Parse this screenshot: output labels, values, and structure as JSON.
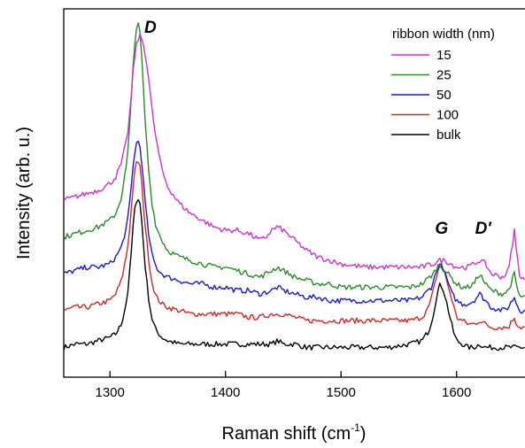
{
  "chart_data": {
    "type": "line",
    "xlabel": "Raman shift (cm",
    "xlabel_sup": "-1",
    "xlabel_tail": ")",
    "ylabel": "Intensity (arb. u.)",
    "xlim": [
      1260,
      1660
    ],
    "ylim": [
      0,
      1
    ],
    "y_ticks_shown": false,
    "x_ticks": [
      "1300",
      "1400",
      "1500",
      "1600"
    ],
    "legend_title": "ribbon width (nm)",
    "legend_position": "top-right",
    "annotations": [
      {
        "text": "D",
        "x": 1335,
        "y": 0.96
      },
      {
        "text": "G",
        "x": 1587,
        "y": 0.36
      },
      {
        "text": "D'",
        "x": 1623,
        "y": 0.36
      }
    ],
    "series": [
      {
        "name": "15",
        "color": "#cc33cc",
        "x": [
          1260,
          1270,
          1280,
          1290,
          1300,
          1305,
          1310,
          1315,
          1318,
          1320,
          1322,
          1324,
          1326,
          1328,
          1330,
          1333,
          1336,
          1340,
          1345,
          1350,
          1360,
          1370,
          1380,
          1390,
          1400,
          1410,
          1420,
          1430,
          1435,
          1440,
          1445,
          1450,
          1460,
          1470,
          1480,
          1490,
          1500,
          1520,
          1540,
          1560,
          1570,
          1580,
          1585,
          1590,
          1595,
          1600,
          1605,
          1610,
          1615,
          1620,
          1625,
          1630,
          1640,
          1645,
          1648,
          1650,
          1652,
          1655,
          1660
        ],
        "y": [
          0.46,
          0.47,
          0.48,
          0.49,
          0.51,
          0.53,
          0.57,
          0.65,
          0.75,
          0.84,
          0.91,
          0.94,
          0.95,
          0.94,
          0.91,
          0.84,
          0.74,
          0.64,
          0.55,
          0.5,
          0.45,
          0.42,
          0.4,
          0.38,
          0.37,
          0.37,
          0.36,
          0.34,
          0.35,
          0.37,
          0.38,
          0.37,
          0.34,
          0.31,
          0.29,
          0.28,
          0.27,
          0.26,
          0.26,
          0.26,
          0.26,
          0.27,
          0.28,
          0.28,
          0.27,
          0.26,
          0.26,
          0.26,
          0.27,
          0.28,
          0.27,
          0.24,
          0.23,
          0.25,
          0.32,
          0.37,
          0.3,
          0.23,
          0.22
        ]
      },
      {
        "name": "25",
        "color": "#2a8a2a",
        "x": [
          1260,
          1270,
          1280,
          1290,
          1300,
          1305,
          1310,
          1315,
          1318,
          1320,
          1322,
          1324,
          1326,
          1328,
          1330,
          1333,
          1336,
          1340,
          1345,
          1350,
          1360,
          1370,
          1380,
          1390,
          1400,
          1410,
          1420,
          1430,
          1440,
          1445,
          1450,
          1460,
          1470,
          1480,
          1490,
          1500,
          1520,
          1540,
          1560,
          1570,
          1580,
          1585,
          1590,
          1595,
          1600,
          1605,
          1610,
          1615,
          1620,
          1625,
          1630,
          1640,
          1645,
          1648,
          1650,
          1652,
          1655,
          1660
        ],
        "y": [
          0.35,
          0.36,
          0.37,
          0.38,
          0.4,
          0.42,
          0.47,
          0.58,
          0.73,
          0.86,
          0.96,
          0.99,
          0.96,
          0.86,
          0.72,
          0.57,
          0.46,
          0.38,
          0.34,
          0.31,
          0.29,
          0.28,
          0.27,
          0.26,
          0.26,
          0.25,
          0.24,
          0.23,
          0.25,
          0.26,
          0.25,
          0.23,
          0.22,
          0.21,
          0.21,
          0.2,
          0.2,
          0.2,
          0.2,
          0.21,
          0.24,
          0.27,
          0.25,
          0.23,
          0.21,
          0.2,
          0.2,
          0.21,
          0.24,
          0.21,
          0.19,
          0.18,
          0.19,
          0.22,
          0.24,
          0.2,
          0.17,
          0.17
        ]
      },
      {
        "name": "50",
        "color": "#1a1acc",
        "x": [
          1260,
          1270,
          1280,
          1290,
          1300,
          1305,
          1310,
          1315,
          1318,
          1320,
          1322,
          1324,
          1326,
          1328,
          1330,
          1333,
          1336,
          1340,
          1345,
          1350,
          1360,
          1370,
          1380,
          1390,
          1400,
          1410,
          1420,
          1430,
          1440,
          1445,
          1450,
          1460,
          1470,
          1480,
          1490,
          1500,
          1520,
          1540,
          1560,
          1570,
          1578,
          1582,
          1585,
          1588,
          1592,
          1596,
          1600,
          1605,
          1610,
          1615,
          1620,
          1625,
          1630,
          1640,
          1645,
          1648,
          1650,
          1652,
          1655,
          1660
        ],
        "y": [
          0.24,
          0.25,
          0.26,
          0.26,
          0.27,
          0.29,
          0.32,
          0.39,
          0.48,
          0.56,
          0.62,
          0.64,
          0.62,
          0.56,
          0.47,
          0.37,
          0.3,
          0.26,
          0.24,
          0.23,
          0.22,
          0.21,
          0.21,
          0.2,
          0.2,
          0.19,
          0.19,
          0.18,
          0.19,
          0.2,
          0.19,
          0.18,
          0.17,
          0.17,
          0.16,
          0.16,
          0.16,
          0.16,
          0.16,
          0.17,
          0.2,
          0.24,
          0.27,
          0.26,
          0.22,
          0.18,
          0.16,
          0.15,
          0.15,
          0.16,
          0.18,
          0.16,
          0.14,
          0.13,
          0.14,
          0.16,
          0.17,
          0.15,
          0.13,
          0.13
        ]
      },
      {
        "name": "100",
        "color": "#cc2a2a",
        "x": [
          1260,
          1270,
          1280,
          1290,
          1300,
          1305,
          1310,
          1315,
          1318,
          1320,
          1322,
          1324,
          1326,
          1328,
          1330,
          1333,
          1336,
          1340,
          1345,
          1350,
          1360,
          1370,
          1380,
          1390,
          1400,
          1410,
          1420,
          1430,
          1440,
          1445,
          1450,
          1460,
          1470,
          1480,
          1490,
          1500,
          1520,
          1540,
          1560,
          1570,
          1576,
          1580,
          1583,
          1586,
          1589,
          1593,
          1597,
          1600,
          1605,
          1610,
          1615,
          1620,
          1625,
          1630,
          1640,
          1645,
          1648,
          1650,
          1652,
          1655,
          1660
        ],
        "y": [
          0.13,
          0.14,
          0.14,
          0.15,
          0.16,
          0.18,
          0.22,
          0.31,
          0.41,
          0.5,
          0.56,
          0.58,
          0.56,
          0.49,
          0.4,
          0.3,
          0.22,
          0.17,
          0.15,
          0.14,
          0.13,
          0.12,
          0.12,
          0.12,
          0.12,
          0.12,
          0.11,
          0.11,
          0.12,
          0.12,
          0.12,
          0.11,
          0.1,
          0.1,
          0.1,
          0.1,
          0.1,
          0.1,
          0.1,
          0.11,
          0.14,
          0.19,
          0.24,
          0.27,
          0.25,
          0.2,
          0.15,
          0.11,
          0.1,
          0.09,
          0.09,
          0.1,
          0.09,
          0.08,
          0.08,
          0.08,
          0.1,
          0.11,
          0.09,
          0.08,
          0.08
        ]
      },
      {
        "name": "bulk",
        "color": "#000000",
        "x": [
          1260,
          1270,
          1280,
          1290,
          1300,
          1305,
          1310,
          1315,
          1318,
          1320,
          1322,
          1324,
          1326,
          1328,
          1330,
          1333,
          1336,
          1340,
          1345,
          1350,
          1360,
          1370,
          1380,
          1390,
          1400,
          1410,
          1420,
          1430,
          1440,
          1445,
          1450,
          1460,
          1470,
          1480,
          1490,
          1500,
          1520,
          1540,
          1560,
          1570,
          1576,
          1580,
          1583,
          1586,
          1589,
          1593,
          1597,
          1600,
          1605,
          1610,
          1615,
          1620,
          1625,
          1630,
          1640,
          1650,
          1660
        ],
        "y": [
          0.02,
          0.03,
          0.03,
          0.04,
          0.05,
          0.06,
          0.09,
          0.17,
          0.28,
          0.38,
          0.45,
          0.47,
          0.45,
          0.38,
          0.28,
          0.18,
          0.11,
          0.07,
          0.05,
          0.04,
          0.03,
          0.03,
          0.03,
          0.03,
          0.03,
          0.03,
          0.03,
          0.03,
          0.03,
          0.04,
          0.03,
          0.03,
          0.02,
          0.02,
          0.02,
          0.02,
          0.02,
          0.02,
          0.03,
          0.04,
          0.07,
          0.12,
          0.18,
          0.21,
          0.19,
          0.13,
          0.07,
          0.04,
          0.03,
          0.02,
          0.02,
          0.03,
          0.02,
          0.02,
          0.02,
          0.02,
          0.02
        ]
      }
    ]
  }
}
